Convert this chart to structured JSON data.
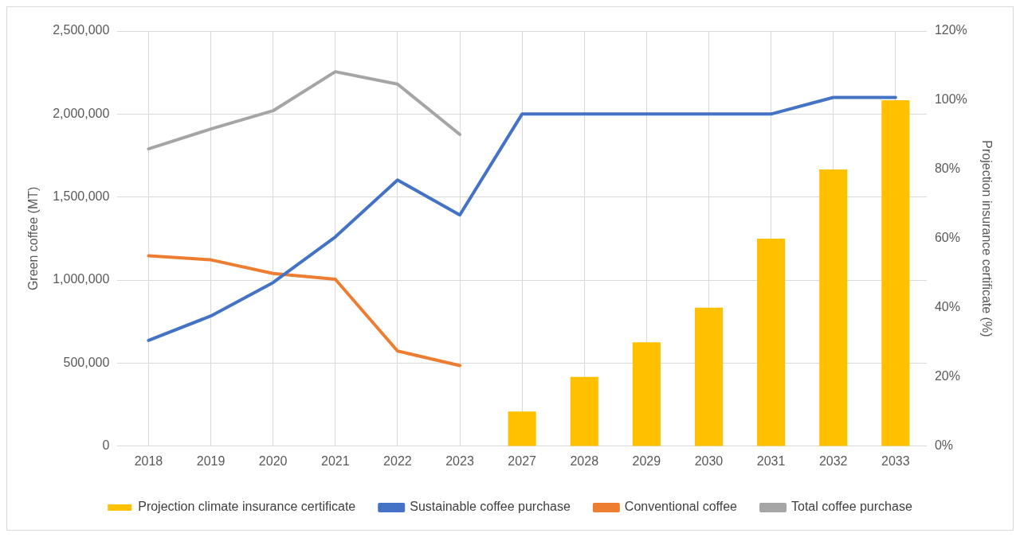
{
  "chart_data": {
    "type": "line",
    "categories": [
      "2018",
      "2019",
      "2020",
      "2021",
      "2022",
      "2023",
      "2027",
      "2028",
      "2029",
      "2030",
      "2031",
      "2032",
      "2033"
    ],
    "series": [
      {
        "name": "Projection climate insurance certificate",
        "type": "bar",
        "axis": "y2",
        "color": "#ffc000",
        "values": [
          null,
          null,
          null,
          null,
          null,
          null,
          10,
          20,
          30,
          40,
          60,
          80,
          100
        ]
      },
      {
        "name": "Sustainable coffee purchase",
        "color": "#4472c4",
        "values": [
          637000,
          784000,
          985000,
          1260000,
          1603000,
          1392000,
          2000000,
          2000000,
          2000000,
          2000000,
          2000000,
          2100000,
          2100000
        ]
      },
      {
        "name": "Conventional coffee",
        "color": "#ed7d31",
        "values": [
          1147000,
          1122000,
          1040000,
          1005000,
          573000,
          485000,
          null,
          null,
          null,
          null,
          null,
          null,
          null
        ]
      },
      {
        "name": "Total coffee purchase",
        "color": "#a5a5a5",
        "values": [
          1790000,
          1910000,
          2020000,
          2255000,
          2180000,
          1877000,
          null,
          null,
          null,
          null,
          null,
          null,
          null
        ]
      }
    ],
    "ylabel": "Green coffee (MT)",
    "y2label": "Projection insurance certificate (%)",
    "ylim": [
      0,
      2500000
    ],
    "yticks": [
      {
        "value": 0,
        "label": "0"
      },
      {
        "value": 500000,
        "label": "500,000"
      },
      {
        "value": 1000000,
        "label": "1,000,000"
      },
      {
        "value": 1500000,
        "label": "1,500,000"
      },
      {
        "value": 2000000,
        "label": "2,000,000"
      },
      {
        "value": 2500000,
        "label": "2,500,000"
      }
    ],
    "y2lim": [
      0,
      120
    ],
    "y2ticks": [
      {
        "value": 0,
        "label": "0%"
      },
      {
        "value": 20,
        "label": "20%"
      },
      {
        "value": 40,
        "label": "40%"
      },
      {
        "value": 60,
        "label": "60%"
      },
      {
        "value": 80,
        "label": "80%"
      },
      {
        "value": 100,
        "label": "100%"
      },
      {
        "value": 120,
        "label": "120%"
      }
    ],
    "grid": true,
    "legend": "bottom",
    "marker": "none"
  }
}
